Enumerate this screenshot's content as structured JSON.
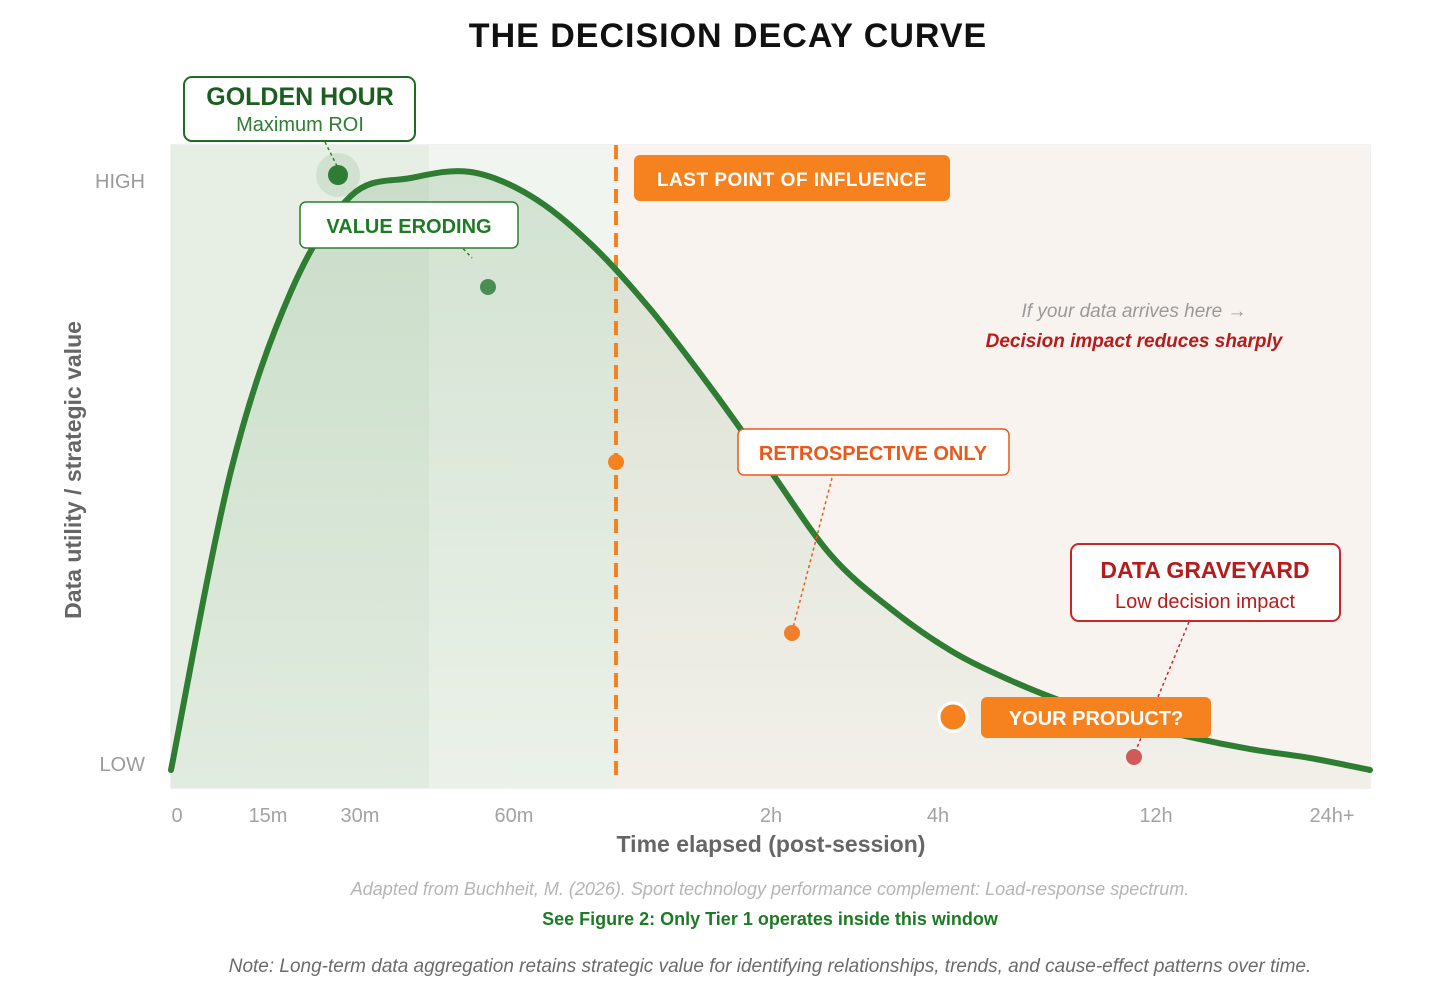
{
  "chart_data": {
    "type": "line",
    "title": "THE DECISION DECAY CURVE",
    "xlabel": "Time elapsed (post-session)",
    "ylabel": "Data utility / strategic value",
    "x_ticks": [
      "0",
      "15m",
      "30m",
      "60m",
      "2h",
      "4h",
      "12h",
      "24h+"
    ],
    "y_ticks": [
      "HIGH",
      "LOW"
    ],
    "ylim": [
      0,
      1
    ],
    "grid": false,
    "series": [
      {
        "values": [
          0.0,
          0.5,
          0.8,
          0.96,
          0.99,
          1.0,
          0.96,
          0.88,
          0.77,
          0.64,
          0.5,
          0.36,
          0.27,
          0.2,
          0.15,
          0.11,
          0.08,
          0.055,
          0.035,
          0.02,
          0.0
        ]
      }
    ],
    "zones": {
      "golden_hour_end": "60m",
      "last_point_of_influence": "LAST POINT OF INFLUENCE"
    },
    "annotations": {
      "golden_hour": {
        "title": "GOLDEN HOUR",
        "subtitle": "Maximum ROI"
      },
      "value_eroding": "VALUE ERODING",
      "last_point": "LAST POINT OF INFLUENCE",
      "retrospective": "RETROSPECTIVE ONLY",
      "graveyard": {
        "title": "DATA GRAVEYARD",
        "subtitle": "Low decision impact"
      },
      "your_product": "YOUR PRODUCT?",
      "note_line1": "If your data arrives here →",
      "note_line2": "Decision impact reduces sharply"
    },
    "colors": {
      "curve": "#2e7d32",
      "golden_zone": "#e6efe4",
      "late_zone": "#f7f2ee",
      "orange": "#f5821f",
      "red": "#c62828"
    }
  },
  "captions": {
    "source": "Adapted from Buchheit, M. (2026). Sport technology performance complement: Load-response spectrum.",
    "figure_ref": "See Figure 2: Only Tier 1 operates inside this window",
    "note": "Note: Long-term data aggregation retains strategic value for identifying relationships, trends, and cause-effect patterns over time."
  }
}
